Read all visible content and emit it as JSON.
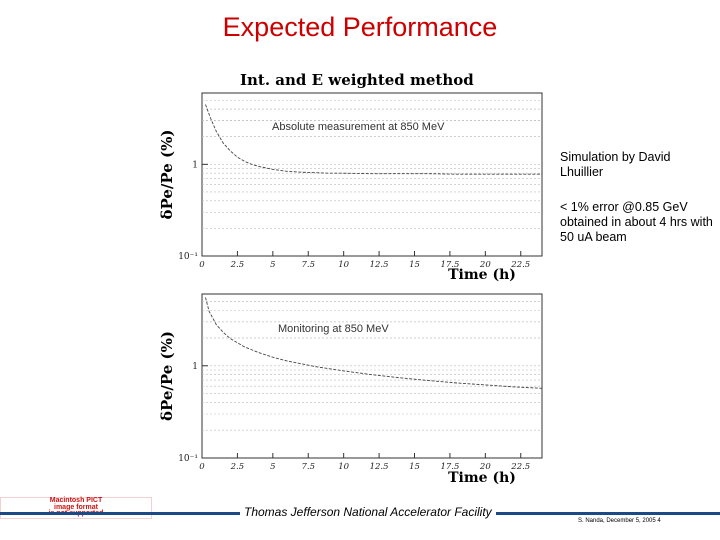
{
  "slide": {
    "title": "Expected Performance",
    "figure_title": "Int. and E weighted method",
    "notes": [
      "Simulation by David Lhuillier",
      "< 1% error @0.85 GeV obtained in about 4 hrs with 50 uA beam"
    ],
    "footer_center": "Thomas Jefferson National Accelerator Facility",
    "footer_right": "S. Nanda, December 5, 2005 4",
    "pict_badge": [
      "Macintosh PICT",
      "image format",
      "is not supported"
    ],
    "colors": {
      "title": "#cc0000",
      "footer_bar": "#1c4a88",
      "pict_text": "#d01010"
    }
  },
  "chart_data": [
    {
      "type": "line",
      "title": "Int. and E weighted method",
      "annotation": "Absolute measurement at 850 MeV",
      "xlabel": "Time (h)",
      "ylabel": "δPe/Pe (%)",
      "x_ticks": [
        "0",
        "2.5",
        "5",
        "7.5",
        "10",
        "12.5",
        "15",
        "17.5",
        "20",
        "22.5"
      ],
      "y_tick_labels": [
        "10⁻¹",
        "1"
      ],
      "y_scale": "log",
      "xlim": [
        0,
        24
      ],
      "ylim": [
        0.1,
        6
      ],
      "grid": "horizontal",
      "x": [
        0.25,
        0.6,
        1,
        1.5,
        2,
        2.5,
        3,
        3.5,
        4,
        5,
        6,
        7,
        8,
        9,
        10,
        12,
        14,
        16,
        18,
        20,
        22,
        24
      ],
      "y": [
        4.5,
        3.2,
        2.3,
        1.7,
        1.4,
        1.2,
        1.08,
        1.0,
        0.95,
        0.88,
        0.84,
        0.82,
        0.81,
        0.8,
        0.8,
        0.79,
        0.79,
        0.79,
        0.78,
        0.78,
        0.78,
        0.78
      ]
    },
    {
      "type": "line",
      "annotation": "Monitoring at 850 MeV",
      "xlabel": "Time (h)",
      "ylabel": "δPe/Pe (%)",
      "x_ticks": [
        "0",
        "2.5",
        "5",
        "7.5",
        "10",
        "12.5",
        "15",
        "17.5",
        "20",
        "22.5"
      ],
      "y_tick_labels": [
        "10⁻¹",
        "1"
      ],
      "y_scale": "log",
      "xlim": [
        0,
        24
      ],
      "ylim": [
        0.1,
        6
      ],
      "grid": "horizontal",
      "x": [
        0.25,
        0.5,
        1,
        1.5,
        2,
        3,
        4,
        5,
        6,
        8,
        10,
        12,
        14,
        16,
        18,
        20,
        22,
        24
      ],
      "y": [
        5.5,
        3.9,
        2.8,
        2.3,
        1.97,
        1.6,
        1.39,
        1.24,
        1.13,
        0.98,
        0.88,
        0.8,
        0.74,
        0.69,
        0.65,
        0.62,
        0.59,
        0.57
      ]
    }
  ]
}
